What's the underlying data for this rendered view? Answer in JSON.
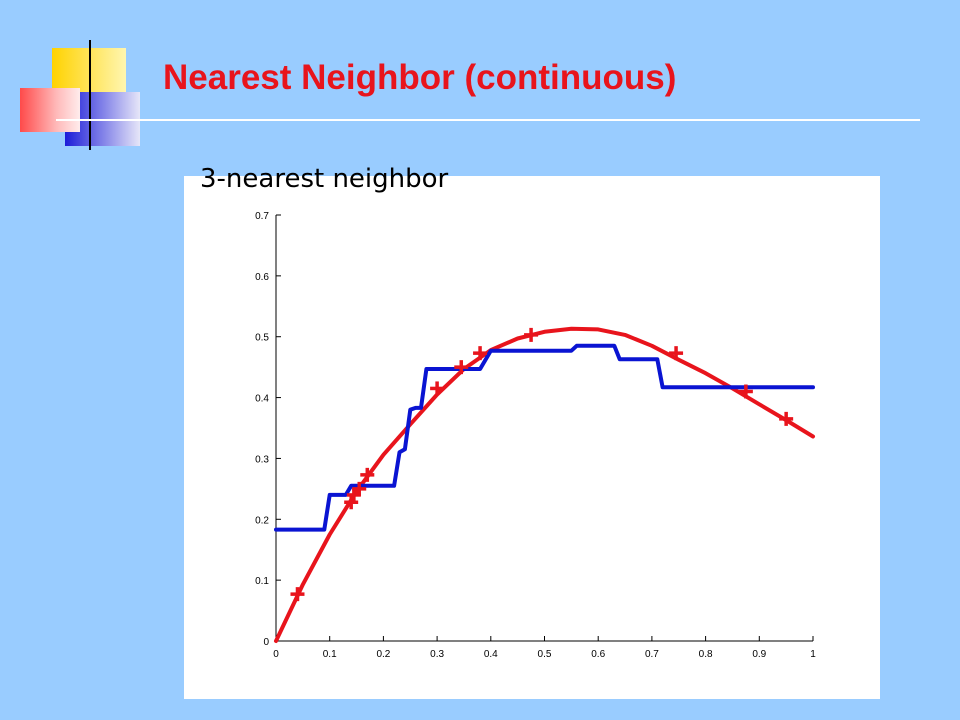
{
  "slide": {
    "title": "Nearest Neighbor (continuous)",
    "caption": "3-nearest neighbor"
  },
  "colors": {
    "background": "#99ccff",
    "title": "#e8141c",
    "curve_fit": "#e8141c",
    "knn": "#0a14d2",
    "points": "#e8141c"
  },
  "chart_data": {
    "type": "line",
    "title": "",
    "xlabel": "",
    "ylabel": "",
    "xlim": [
      0,
      1
    ],
    "ylim": [
      0,
      0.7
    ],
    "xticks": [
      0,
      0.1,
      0.2,
      0.3,
      0.4,
      0.5,
      0.6,
      0.7,
      0.8,
      0.9,
      1
    ],
    "xtick_labels": [
      "0",
      "0.1",
      "0.2",
      "0.3",
      "0.4",
      "0.5",
      "0.6",
      "0.7",
      "0.8",
      "0.9",
      "1"
    ],
    "yticks": [
      0,
      0.1,
      0.2,
      0.3,
      0.4,
      0.5,
      0.6,
      0.7
    ],
    "ytick_labels": [
      "0",
      "0.1",
      "0.2",
      "0.3",
      "0.4",
      "0.5",
      "0.6",
      "0.7"
    ],
    "grid": false,
    "legend": false,
    "series": [
      {
        "kind": "curve",
        "color": "#e8141c",
        "x": [
          0,
          0.05,
          0.1,
          0.15,
          0.2,
          0.25,
          0.3,
          0.35,
          0.4,
          0.45,
          0.5,
          0.55,
          0.6,
          0.65,
          0.7,
          0.75,
          0.8,
          0.85,
          0.9,
          0.95,
          1
        ],
        "y": [
          0,
          0.093,
          0.175,
          0.246,
          0.306,
          0.356,
          0.405,
          0.447,
          0.478,
          0.497,
          0.508,
          0.513,
          0.512,
          0.503,
          0.485,
          0.462,
          0.44,
          0.415,
          0.389,
          0.363,
          0.336
        ]
      },
      {
        "kind": "step",
        "color": "#0a14d2",
        "x": [
          0,
          0.09,
          0.1,
          0.13,
          0.14,
          0.16,
          0.22,
          0.23,
          0.24,
          0.25,
          0.26,
          0.27,
          0.28,
          0.3,
          0.38,
          0.4,
          0.55,
          0.56,
          0.63,
          0.64,
          0.71,
          0.72,
          1
        ],
        "y": [
          0.183,
          0.183,
          0.24,
          0.24,
          0.255,
          0.255,
          0.255,
          0.31,
          0.315,
          0.38,
          0.383,
          0.383,
          0.447,
          0.447,
          0.447,
          0.477,
          0.477,
          0.485,
          0.485,
          0.463,
          0.463,
          0.417,
          0.417
        ]
      },
      {
        "kind": "points",
        "marker": "+",
        "color": "#e8141c",
        "x": [
          0.04,
          0.14,
          0.145,
          0.155,
          0.17,
          0.3,
          0.345,
          0.38,
          0.475,
          0.745,
          0.875,
          0.95
        ],
        "y": [
          0.077,
          0.228,
          0.24,
          0.25,
          0.273,
          0.415,
          0.45,
          0.473,
          0.503,
          0.473,
          0.41,
          0.365
        ]
      }
    ]
  }
}
